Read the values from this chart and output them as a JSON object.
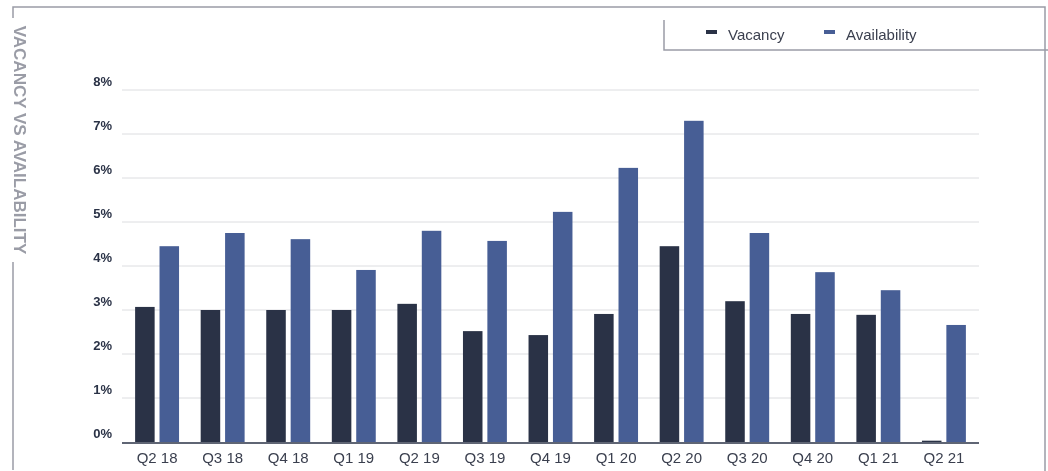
{
  "chart_data": {
    "type": "bar",
    "ylabel": "VACANCY VS AVAILABILITY",
    "categories": [
      "Q2 18",
      "Q3 18",
      "Q4 18",
      "Q1 19",
      "Q2 19",
      "Q3 19",
      "Q4 19",
      "Q1 20",
      "Q2 20",
      "Q3 20",
      "Q4 20",
      "Q1 21",
      "Q2 21"
    ],
    "series": [
      {
        "name": "Vacancy",
        "color": "#2a3246",
        "values": [
          3.07,
          3.0,
          3.0,
          3.0,
          3.14,
          2.52,
          2.43,
          2.91,
          4.45,
          3.2,
          2.91,
          2.89,
          0.03
        ]
      },
      {
        "name": "Availability",
        "color": "#475e95",
        "values": [
          4.45,
          4.75,
          4.61,
          3.91,
          4.8,
          4.57,
          5.23,
          6.23,
          7.3,
          4.75,
          3.86,
          3.45,
          2.66
        ]
      }
    ],
    "ylim": [
      0,
      8
    ],
    "yticks": [
      {
        "value": 0,
        "label": "0%"
      },
      {
        "value": 1,
        "label": "1%"
      },
      {
        "value": 2,
        "label": "2%"
      },
      {
        "value": 3,
        "label": "3%"
      },
      {
        "value": 4,
        "label": "4%"
      },
      {
        "value": 5,
        "label": "5%"
      },
      {
        "value": 6,
        "label": "6%"
      },
      {
        "value": 7,
        "label": "7%"
      },
      {
        "value": 8,
        "label": "8%"
      }
    ],
    "grid": "y",
    "legend": "top right"
  }
}
